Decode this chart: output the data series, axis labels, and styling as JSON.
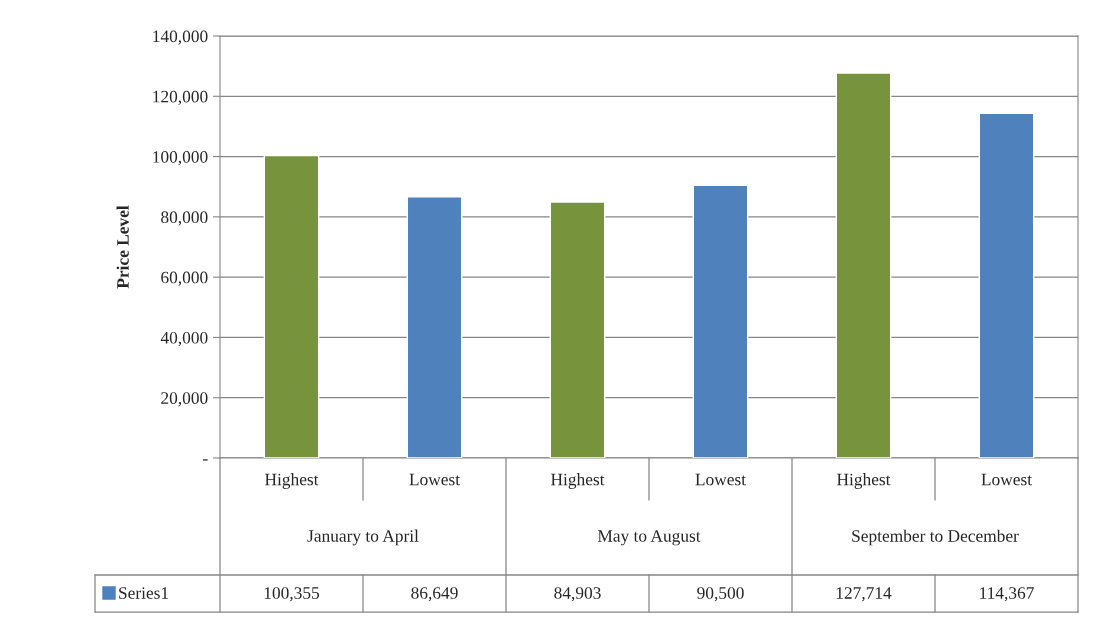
{
  "chart_data": {
    "type": "bar",
    "ylabel": "Price Level",
    "categories": [
      "Highest",
      "Lowest",
      "Highest",
      "Lowest",
      "Highest",
      "Lowest"
    ],
    "annotations": [
      "January to April",
      "May to August",
      "September to December"
    ],
    "series": [
      {
        "name": "Series1",
        "color": "#4f81bd",
        "colors": [
          "#77933c",
          "#4f81bd",
          "#77933c",
          "#4f81bd",
          "#77933c",
          "#4f81bd"
        ],
        "values": [
          100355,
          86649,
          84903,
          90500,
          127714,
          114367
        ],
        "value_labels": [
          "100,355",
          "86,649",
          "84,903",
          "90,500",
          "127,714",
          "114,367"
        ]
      }
    ],
    "ylim": [
      0,
      140000
    ],
    "yticks": [
      {
        "value": 0,
        "label": "-"
      },
      {
        "value": 20000,
        "label": "20,000"
      },
      {
        "value": 40000,
        "label": "40,000"
      },
      {
        "value": 60000,
        "label": "60,000"
      },
      {
        "value": 80000,
        "label": "80,000"
      },
      {
        "value": 100000,
        "label": "100,000"
      },
      {
        "value": 120000,
        "label": "120,000"
      },
      {
        "value": 140000,
        "label": "140,000"
      }
    ],
    "grid": "y",
    "legend": "bottom"
  }
}
